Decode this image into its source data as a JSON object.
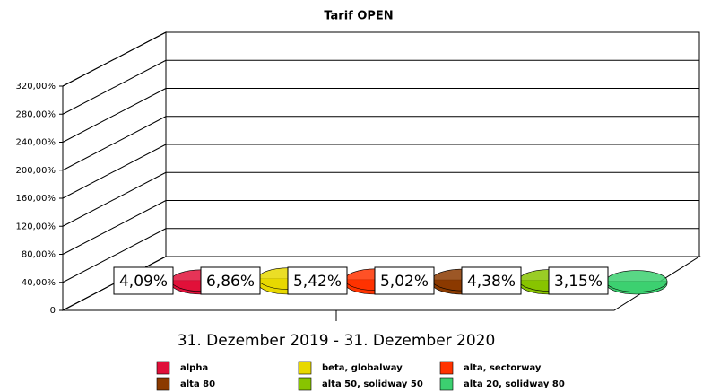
{
  "chart_data": {
    "type": "bar3d",
    "title": "Tarif OPEN",
    "categories": [
      "31. Dezember 2019 - 31. Dezember 2020"
    ],
    "ylim": [
      0,
      320
    ],
    "yticks": [
      0,
      {
        "value": 40,
        "label": "40,00%"
      },
      {
        "value": 80,
        "label": "80,00%"
      },
      {
        "value": 120,
        "label": "120,00%"
      },
      {
        "value": 160,
        "label": "160,00%"
      },
      {
        "value": 200,
        "label": "200,00%"
      },
      {
        "value": 240,
        "label": "240,00%"
      },
      {
        "value": 280,
        "label": "280,00%"
      },
      {
        "value": 320,
        "label": "320,00%"
      }
    ],
    "grid": true,
    "legend": "bottom",
    "series": [
      {
        "name": "alpha",
        "color": "#e0103a",
        "values": [
          4.09
        ],
        "value_labels": [
          "4,09%"
        ]
      },
      {
        "name": "beta, globalway",
        "color": "#e8d800",
        "values": [
          6.86
        ],
        "value_labels": [
          "6,86%"
        ]
      },
      {
        "name": "alta, sectorway",
        "color": "#ff3300",
        "values": [
          5.42
        ],
        "value_labels": [
          "5,42%"
        ]
      },
      {
        "name": "alta 80",
        "color": "#8b3a00",
        "values": [
          5.02
        ],
        "value_labels": [
          "5,02%"
        ]
      },
      {
        "name": "alta 50, solidway 50",
        "color": "#88c400",
        "values": [
          4.38
        ],
        "value_labels": [
          "4,38%"
        ]
      },
      {
        "name": "alta 20, solidway 80",
        "color": "#3cd070",
        "values": [
          3.15
        ],
        "value_labels": [
          "3,15%"
        ]
      }
    ]
  }
}
